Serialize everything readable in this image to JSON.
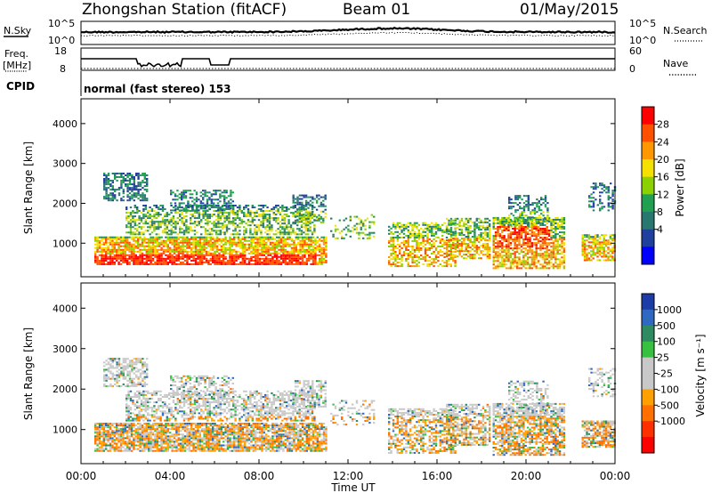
{
  "header": {
    "station": "Zhongshan Station (fitACF)",
    "beam": "Beam 01",
    "date": "01/May/2015"
  },
  "top_panel": {
    "left_label": "N.Sky",
    "left_ticks": [
      "10^5",
      "10^0"
    ],
    "right_label": "N.Search",
    "right_ticks": [
      "10^5",
      "10^0"
    ]
  },
  "freq_panel": {
    "left_label_1": "Freq.",
    "left_label_2": "[MHz]",
    "left_ticks": [
      "18",
      "8"
    ],
    "right_label": "Nave",
    "right_ticks": [
      "60",
      "0"
    ]
  },
  "cpid": {
    "label": "CPID",
    "text": "normal (fast stereo) 153"
  },
  "chart_data": [
    {
      "type": "heatmap",
      "name": "power",
      "xlabel": "Time UT",
      "ylabel": "Slant Range [km]",
      "xlim": [
        0,
        24
      ],
      "ylim": [
        180,
        4600
      ],
      "yticks": [
        "4000",
        "3000",
        "2000",
        "1000"
      ],
      "colorbar": {
        "label": "Power [dB]",
        "ticks": [
          "28",
          "24",
          "20",
          "16",
          "12",
          "8",
          "4"
        ],
        "colors": [
          "#ff0000",
          "#ff5000",
          "#ff9800",
          "#f6e000",
          "#8cd000",
          "#20a050",
          "#287870",
          "#2040a0",
          "#0000ff"
        ]
      }
    },
    {
      "type": "heatmap",
      "name": "velocity",
      "xlabel": "Time UT",
      "ylabel": "Slant Range [km]",
      "xlim": [
        0,
        24
      ],
      "ylim": [
        180,
        4600
      ],
      "yticks": [
        "4000",
        "3000",
        "2000",
        "1000"
      ],
      "colorbar": {
        "label": "Velocity [m s⁻¹]",
        "ticks": [
          "1000",
          "500",
          "100",
          "25",
          "-25",
          "-100",
          "-500",
          "-1000"
        ],
        "colors": [
          "#1e3ca8",
          "#2f68c0",
          "#2e8a60",
          "#38c040",
          "#c8c8c8",
          "#c8c8c8",
          "#ffa000",
          "#ff7000",
          "#ff3000",
          "#ff0000"
        ]
      }
    }
  ],
  "x_axis": {
    "ticks": [
      "00:00",
      "04:00",
      "08:00",
      "12:00",
      "16:00",
      "20:00",
      "00:00"
    ],
    "label": "Time UT"
  }
}
